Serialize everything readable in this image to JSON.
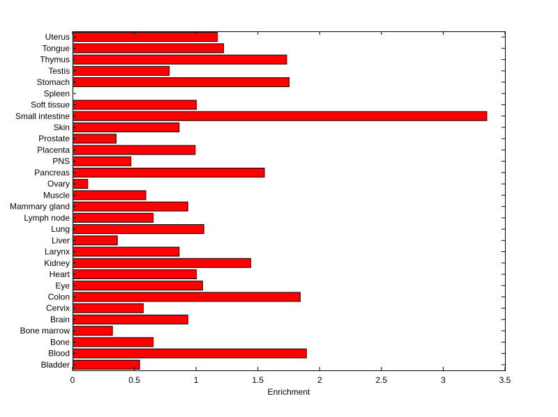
{
  "chart_data": {
    "type": "bar",
    "orientation": "horizontal",
    "title": "",
    "xlabel": "Enrichment",
    "ylabel": "",
    "xlim": [
      0,
      3.5
    ],
    "xticks": [
      0,
      0.5,
      1,
      1.5,
      2,
      2.5,
      3,
      3.5
    ],
    "xtick_labels": [
      "0",
      "0.5",
      "1",
      "1.5",
      "2",
      "2.5",
      "3",
      "3.5"
    ],
    "grid": false,
    "legend": "none",
    "bar_color": "#ff0000",
    "categories": [
      "Bladder",
      "Blood",
      "Bone",
      "Bone marrow",
      "Brain",
      "Cervix",
      "Colon",
      "Eye",
      "Heart",
      "Kidney",
      "Larynx",
      "Liver",
      "Lung",
      "Lymph node",
      "Mammary gland",
      "Muscle",
      "Ovary",
      "Pancreas",
      "PNS",
      "Placenta",
      "Prostate",
      "Skin",
      "Small intestine",
      "Soft tissue",
      "Spleen",
      "Stomach",
      "Testis",
      "Thymus",
      "Tongue",
      "Uterus"
    ],
    "values": [
      0.54,
      1.89,
      0.65,
      0.32,
      0.93,
      0.57,
      1.84,
      1.05,
      1.0,
      1.44,
      0.86,
      0.36,
      1.06,
      0.65,
      0.93,
      0.59,
      0.12,
      1.55,
      0.47,
      0.99,
      0.35,
      0.86,
      3.35,
      1.0,
      0.0,
      1.75,
      0.78,
      1.73,
      1.22,
      1.17
    ]
  }
}
